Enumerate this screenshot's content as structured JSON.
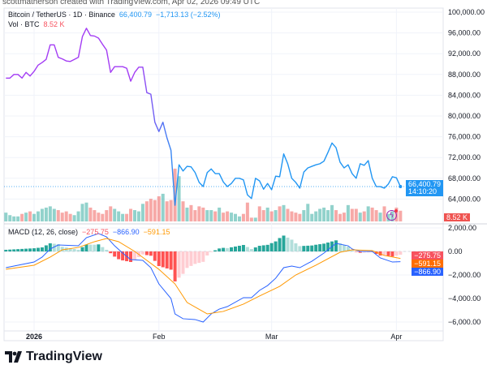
{
  "attribution": "scottmatherson created with TradingView.com, Apr 02, 2026 09:49 UTC",
  "legend": {
    "symbol": "Bitcoin / TetherUS · 1D · Binance",
    "price": "66,400.79",
    "change": "−1,713.13 (−2.52%)",
    "vol_label": "Vol · BTC",
    "vol_value": "8.52 K",
    "macd_label": "MACD (12, 26, close)",
    "macd_hist": "−275.75",
    "macd_line": "−866.90",
    "macd_signal": "−591.15"
  },
  "price_tag": {
    "price": "66,400.79",
    "countdown": "14:10:20"
  },
  "vol_tag": "8.52 K",
  "macd_tags": {
    "hist": "−275.75",
    "signal": "−591.15",
    "macd": "−866.90"
  },
  "branding": "TradingView",
  "colors": {
    "up": "#26a69a",
    "down": "#ef5350",
    "price_start": "#a33cf4",
    "price_end": "#2196f3",
    "macd": "#2962ff",
    "signal": "#ff9800"
  },
  "chart_data": [
    {
      "type": "line",
      "title": "Bitcoin / TetherUS · 1D · Binance",
      "x_ticks": [
        {
          "date": "2026-01-01",
          "label": "2026"
        },
        {
          "date": "2026-02-01",
          "label": "Feb"
        },
        {
          "date": "2026-03-01",
          "label": "Mar"
        },
        {
          "date": "2026-04-01",
          "label": "Apr"
        }
      ],
      "y_ticks": [
        100000,
        96000,
        92000,
        88000,
        84000,
        80000,
        76000,
        72000,
        68000,
        64000
      ],
      "y_tick_labels": [
        "100,000.00",
        "96,000.00",
        "92,000.00",
        "88,000.00",
        "84,000.00",
        "80,000.00",
        "76,000.00",
        "72,000.00",
        "68,000.00",
        "64,000.00"
      ],
      "ylim": [
        60000,
        100000
      ],
      "grid": true,
      "dates": [
        "2025-12-25",
        "2025-12-26",
        "2025-12-27",
        "2025-12-28",
        "2025-12-29",
        "2025-12-30",
        "2025-12-31",
        "2026-01-01",
        "2026-01-02",
        "2026-01-03",
        "2026-01-04",
        "2026-01-05",
        "2026-01-06",
        "2026-01-07",
        "2026-01-08",
        "2026-01-09",
        "2026-01-10",
        "2026-01-11",
        "2026-01-12",
        "2026-01-13",
        "2026-01-14",
        "2026-01-15",
        "2026-01-16",
        "2026-01-17",
        "2026-01-18",
        "2026-01-19",
        "2026-01-20",
        "2026-01-21",
        "2026-01-22",
        "2026-01-23",
        "2026-01-24",
        "2026-01-25",
        "2026-01-26",
        "2026-01-27",
        "2026-01-28",
        "2026-01-29",
        "2026-01-30",
        "2026-01-31",
        "2026-02-01",
        "2026-02-02",
        "2026-02-03",
        "2026-02-04",
        "2026-02-05",
        "2026-02-06",
        "2026-02-07",
        "2026-02-08",
        "2026-02-09",
        "2026-02-10",
        "2026-02-11",
        "2026-02-12",
        "2026-02-13",
        "2026-02-14",
        "2026-02-15",
        "2026-02-16",
        "2026-02-17",
        "2026-02-18",
        "2026-02-19",
        "2026-02-20",
        "2026-02-21",
        "2026-02-22",
        "2026-02-23",
        "2026-02-24",
        "2026-02-25",
        "2026-02-26",
        "2026-02-27",
        "2026-02-28",
        "2026-03-01",
        "2026-03-02",
        "2026-03-03",
        "2026-03-04",
        "2026-03-05",
        "2026-03-06",
        "2026-03-07",
        "2026-03-08",
        "2026-03-09",
        "2026-03-10",
        "2026-03-11",
        "2026-03-12",
        "2026-03-13",
        "2026-03-14",
        "2026-03-15",
        "2026-03-16",
        "2026-03-17",
        "2026-03-18",
        "2026-03-19",
        "2026-03-20",
        "2026-03-21",
        "2026-03-22",
        "2026-03-23",
        "2026-03-24",
        "2026-03-25",
        "2026-03-26",
        "2026-03-27",
        "2026-03-28",
        "2026-03-29",
        "2026-03-30",
        "2026-03-31",
        "2026-04-01",
        "2026-04-02"
      ],
      "close": [
        87300,
        87300,
        88000,
        88000,
        87300,
        88400,
        87700,
        88600,
        89800,
        90300,
        90900,
        93700,
        93700,
        91300,
        91000,
        90600,
        90500,
        90900,
        91300,
        95300,
        96900,
        95500,
        95400,
        95000,
        93800,
        92700,
        88400,
        89500,
        89500,
        89500,
        89200,
        86700,
        88400,
        89400,
        89400,
        84500,
        84200,
        78800,
        77000,
        78800,
        75800,
        73400,
        62800,
        70600,
        69400,
        70300,
        70200,
        69100,
        67200,
        66400,
        69100,
        69800,
        68900,
        68900,
        67300,
        66400,
        67000,
        68000,
        68000,
        67700,
        64800,
        64100,
        68000,
        67500,
        65900,
        67000,
        65800,
        68400,
        68300,
        72700,
        70800,
        68000,
        67200,
        66100,
        69200,
        70000,
        70300,
        70600,
        70800,
        71300,
        73000,
        74800,
        73900,
        71100,
        70000,
        70600,
        68900,
        68000,
        70800,
        70500,
        71400,
        68000,
        66400,
        66400,
        66100,
        66900,
        68300,
        68100,
        66400.79
      ],
      "last_price": 66400.79
    },
    {
      "type": "bar",
      "title": "Vol · BTC",
      "unit": "K",
      "values": [
        7,
        5,
        4,
        4,
        6,
        7,
        8,
        6,
        8,
        10,
        11,
        12,
        10,
        9,
        7,
        8,
        6,
        5,
        8,
        14,
        15,
        11,
        9,
        7,
        6,
        9,
        12,
        10,
        8,
        6,
        6,
        10,
        9,
        8,
        14,
        16,
        18,
        17,
        20,
        22,
        16,
        17,
        42,
        36,
        16,
        11,
        13,
        9,
        12,
        11,
        9,
        9,
        8,
        11,
        7,
        8,
        7,
        6,
        4,
        6,
        15,
        3,
        3,
        12,
        9,
        11,
        8,
        9,
        12,
        13,
        10,
        8,
        7,
        6,
        9,
        14,
        6,
        8,
        10,
        11,
        9,
        13,
        9,
        6,
        7,
        13,
        10,
        10,
        7,
        8,
        12,
        11,
        9,
        7,
        12,
        6,
        8,
        11,
        8.52
      ]
    },
    {
      "type": "line",
      "title": "MACD (12, 26, close)",
      "y_ticks": [
        2000,
        0,
        -2000,
        -4000,
        -6000
      ],
      "y_tick_labels": [
        "2,000.00",
        "0.00",
        "−2,000.00",
        "−4,000.00",
        "−6,000.00"
      ],
      "macd": [
        [
          "2025-12-25",
          -1380
        ],
        [
          "2026-01-01",
          -900
        ],
        [
          "2026-01-03",
          -480
        ],
        [
          "2026-01-05",
          210
        ],
        [
          "2026-01-07",
          550
        ],
        [
          "2026-01-12",
          480
        ],
        [
          "2026-01-14",
          1170
        ],
        [
          "2026-01-17",
          1520
        ],
        [
          "2026-01-19",
          1240
        ],
        [
          "2026-01-21",
          480
        ],
        [
          "2026-01-23",
          -140
        ],
        [
          "2026-01-25",
          -690
        ],
        [
          "2026-01-28",
          -760
        ],
        [
          "2026-01-30",
          -1380
        ],
        [
          "2026-02-01",
          -2760
        ],
        [
          "2026-02-04",
          -4000
        ],
        [
          "2026-02-05",
          -5310
        ],
        [
          "2026-02-07",
          -5720
        ],
        [
          "2026-02-10",
          -5790
        ],
        [
          "2026-02-12",
          -6000
        ],
        [
          "2026-02-14",
          -5310
        ],
        [
          "2026-02-16",
          -4900
        ],
        [
          "2026-02-18",
          -4690
        ],
        [
          "2026-02-22",
          -3930
        ],
        [
          "2026-02-24",
          -3930
        ],
        [
          "2026-02-26",
          -3310
        ],
        [
          "2026-02-28",
          -2900
        ],
        [
          "2026-03-02",
          -2280
        ],
        [
          "2026-03-04",
          -1380
        ],
        [
          "2026-03-06",
          -1240
        ],
        [
          "2026-03-08",
          -1380
        ],
        [
          "2026-03-11",
          -830
        ],
        [
          "2026-03-14",
          -140
        ],
        [
          "2026-03-17",
          690
        ],
        [
          "2026-03-20",
          480
        ],
        [
          "2026-03-21",
          210
        ],
        [
          "2026-03-23",
          0
        ],
        [
          "2026-03-26",
          0
        ],
        [
          "2026-03-28",
          -550
        ],
        [
          "2026-03-31",
          -900
        ],
        [
          "2026-04-02",
          -866.9
        ]
      ],
      "signal": [
        [
          "2025-12-25",
          -1520
        ],
        [
          "2026-01-01",
          -1170
        ],
        [
          "2026-01-05",
          -480
        ],
        [
          "2026-01-08",
          140
        ],
        [
          "2026-01-12",
          340
        ],
        [
          "2026-01-16",
          830
        ],
        [
          "2026-01-19",
          1100
        ],
        [
          "2026-01-22",
          830
        ],
        [
          "2026-01-26",
          0
        ],
        [
          "2026-01-29",
          -760
        ],
        [
          "2026-02-01",
          -1520
        ],
        [
          "2026-02-05",
          -2760
        ],
        [
          "2026-02-08",
          -4340
        ],
        [
          "2026-02-13",
          -5310
        ],
        [
          "2026-02-17",
          -5100
        ],
        [
          "2026-02-22",
          -4480
        ],
        [
          "2026-02-26",
          -3790
        ],
        [
          "2026-03-03",
          -2970
        ],
        [
          "2026-03-07",
          -2000
        ],
        [
          "2026-03-12",
          -1170
        ],
        [
          "2026-03-18",
          -70
        ],
        [
          "2026-03-21",
          140
        ],
        [
          "2026-03-26",
          70
        ],
        [
          "2026-03-29",
          -340
        ],
        [
          "2026-04-02",
          -591.15
        ]
      ],
      "histogram_last": -275.75
    }
  ]
}
